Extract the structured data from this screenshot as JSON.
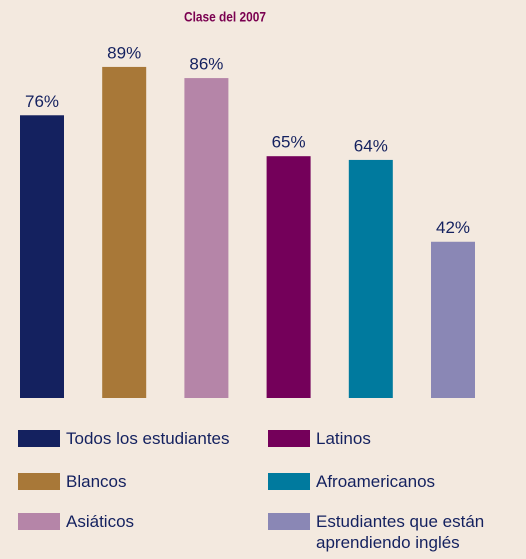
{
  "chart_data": {
    "type": "bar",
    "title": "Clase del 2007",
    "categories": [
      "Todos los estudiantes",
      "Blancos",
      "Asiáticos",
      "Latinos",
      "Afroamericanos",
      "Estudiantes que están aprendiendo inglés"
    ],
    "values": [
      76,
      89,
      86,
      65,
      64,
      42
    ],
    "value_labels": [
      "76%",
      "89%",
      "86%",
      "65%",
      "64%",
      "42%"
    ],
    "colors": [
      "#14215f",
      "#a87838",
      "#b585a8",
      "#74005a",
      "#007a9e",
      "#8a87b5"
    ]
  }
}
